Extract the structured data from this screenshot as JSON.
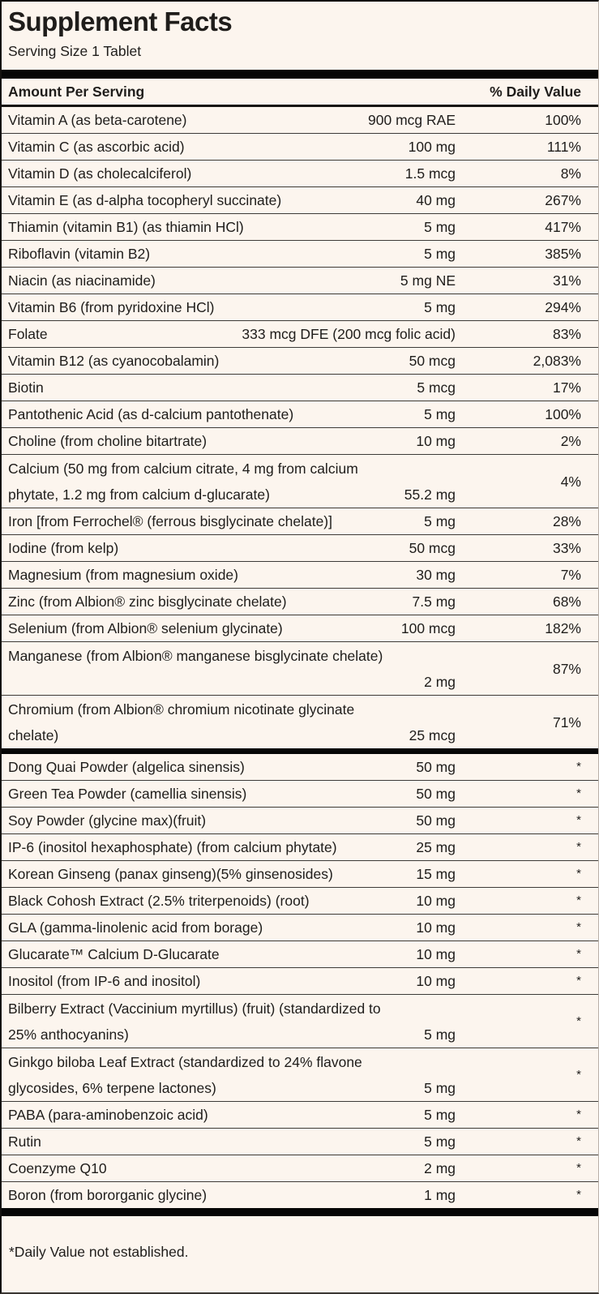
{
  "title": "Supplement Facts",
  "serving_size": "Serving Size 1 Tablet",
  "header": {
    "amount_label": "Amount Per Serving",
    "dv_label": "% Daily Value"
  },
  "footnote": "*Daily Value not established.",
  "colors": {
    "background": "#fcf5ee",
    "text": "#1f1d1b",
    "bar": "#060606",
    "rule": "#3d3b38"
  },
  "table": {
    "sections": [
      {
        "name": "vitamins-and-minerals",
        "rows": [
          {
            "line1": "Vitamin A (as beta-carotene)",
            "amount": "900 mcg RAE",
            "dv": "100%"
          },
          {
            "line1": "Vitamin C (as ascorbic acid)",
            "amount": "100 mg",
            "dv": "111%"
          },
          {
            "line1": "Vitamin D (as cholecalciferol)",
            "amount": "1.5 mcg",
            "dv": "8%"
          },
          {
            "line1": "Vitamin E (as d-alpha tocopheryl succinate)",
            "amount": "40 mg",
            "dv": "267%"
          },
          {
            "line1": "Thiamin (vitamin B1) (as thiamin HCl)",
            "amount": "5 mg",
            "dv": "417%"
          },
          {
            "line1": "Riboflavin (vitamin B2)",
            "amount": "5 mg",
            "dv": "385%"
          },
          {
            "line1": "Niacin (as niacinamide)",
            "amount": "5 mg NE",
            "dv": "31%"
          },
          {
            "line1": "Vitamin B6 (from pyridoxine HCl)",
            "amount": "5 mg",
            "dv": "294%"
          },
          {
            "line1": "Folate",
            "amount": "333 mcg DFE (200 mcg folic acid)",
            "dv": "83%"
          },
          {
            "line1": "Vitamin B12 (as cyanocobalamin)",
            "amount": "50 mcg",
            "dv": "2,083%"
          },
          {
            "line1": "Biotin",
            "amount": "5 mcg",
            "dv": "17%"
          },
          {
            "line1": "Pantothenic Acid (as d-calcium pantothenate)",
            "amount": "5 mg",
            "dv": "100%"
          },
          {
            "line1": "Choline (from choline bitartrate)",
            "amount": "10 mg",
            "dv": "2%"
          },
          {
            "line1": "Calcium (50 mg from calcium citrate, 4 mg from calcium",
            "line2": "phytate, 1.2 mg from calcium d-glucarate)",
            "amount": "55.2 mg",
            "dv": "4%"
          },
          {
            "line1": "Iron [from Ferrochel® (ferrous bisglycinate chelate)]",
            "amount": "5 mg",
            "dv": "28%"
          },
          {
            "line1": "Iodine (from kelp)",
            "amount": "50 mcg",
            "dv": "33%"
          },
          {
            "line1": "Magnesium (from magnesium oxide)",
            "amount": "30 mg",
            "dv": "7%"
          },
          {
            "line1": "Zinc (from Albion® zinc bisglycinate chelate)",
            "amount": "7.5 mg",
            "dv": "68%"
          },
          {
            "line1": "Selenium (from Albion® selenium glycinate)",
            "amount": "100 mcg",
            "dv": "182%"
          },
          {
            "line1": "Manganese (from Albion® manganese bisglycinate chelate)",
            "line2": "",
            "amount": "2 mg",
            "dv": "87%"
          },
          {
            "line1": "Chromium (from Albion® chromium nicotinate glycinate",
            "line2": "chelate)",
            "amount": "25 mcg",
            "dv": "71%"
          }
        ]
      },
      {
        "name": "botanicals-and-other",
        "rows": [
          {
            "line1": "Dong Quai Powder (algelica sinensis)",
            "amount": "50 mg",
            "dv": "*"
          },
          {
            "line1": "Green Tea Powder (camellia sinensis)",
            "amount": "50 mg",
            "dv": "*"
          },
          {
            "line1": "Soy Powder (glycine max)(fruit)",
            "amount": "50 mg",
            "dv": "*"
          },
          {
            "line1": "IP-6 (inositol hexaphosphate) (from calcium phytate)",
            "amount": "25 mg",
            "dv": "*"
          },
          {
            "line1": "Korean Ginseng (panax ginseng)(5% ginsenosides)",
            "amount": "15 mg",
            "dv": "*"
          },
          {
            "line1": "Black Cohosh Extract (2.5% triterpenoids) (root)",
            "amount": "10 mg",
            "dv": "*"
          },
          {
            "line1": "GLA (gamma-linolenic acid from borage)",
            "amount": "10 mg",
            "dv": "*"
          },
          {
            "line1": "Glucarate™ Calcium D-Glucarate",
            "amount": "10 mg",
            "dv": "*"
          },
          {
            "line1": "Inositol (from IP-6 and inositol)",
            "amount": "10 mg",
            "dv": "*"
          },
          {
            "line1": "Bilberry Extract (Vaccinium myrtillus) (fruit) (standardized to",
            "line2": "25% anthocyanins)",
            "amount": "5 mg",
            "dv": "*"
          },
          {
            "line1": "Ginkgo biloba Leaf Extract (standardized to 24% flavone",
            "line2": "glycosides, 6% terpene lactones)",
            "amount": "5 mg",
            "dv": "*"
          },
          {
            "line1": "PABA (para-aminobenzoic acid)",
            "amount": "5 mg",
            "dv": "*"
          },
          {
            "line1": "Rutin",
            "amount": "5 mg",
            "dv": "*"
          },
          {
            "line1": "Coenzyme Q10",
            "amount": "2 mg",
            "dv": "*"
          },
          {
            "line1": "Boron (from bororganic glycine)",
            "amount": "1 mg",
            "dv": "*"
          }
        ]
      }
    ]
  }
}
